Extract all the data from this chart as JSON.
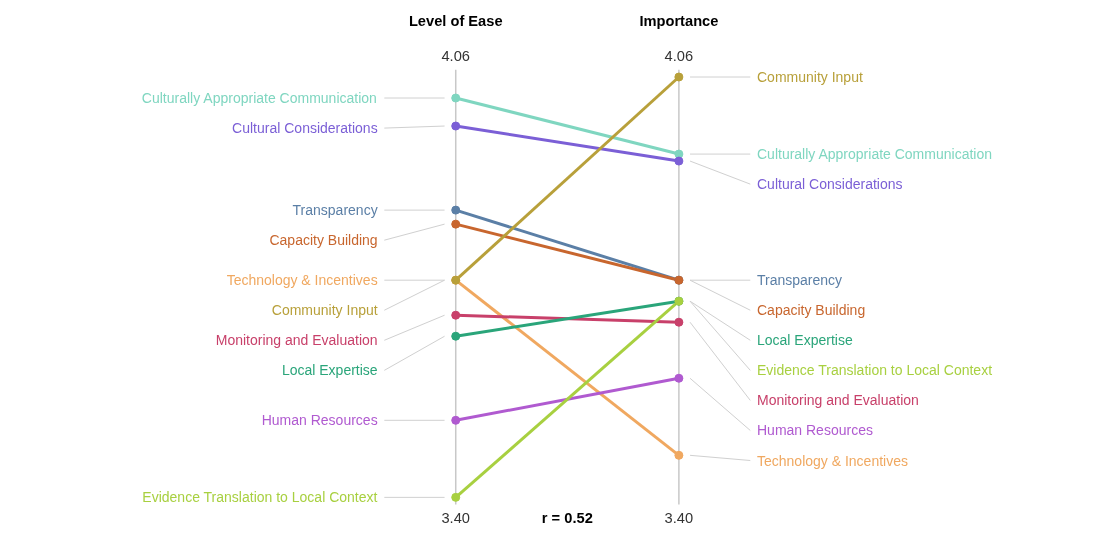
{
  "chart_data": {
    "type": "line",
    "categories": [
      "Level of Ease",
      "Importance"
    ],
    "ylim": [
      3.4,
      4.06
    ],
    "yticks": [
      {
        "value": 3.4,
        "label": "3.40"
      },
      {
        "value": 4.06,
        "label": "4.06"
      }
    ],
    "marker": "circle",
    "grid": "x",
    "legend": false,
    "annotations": [
      "r = 0.52"
    ],
    "series": [
      {
        "name": "Culturally Appropriate Communication",
        "color": "#7fd6c0",
        "values": [
          4.0,
          3.92
        ]
      },
      {
        "name": "Cultural Considerations",
        "color": "#7b5fd6",
        "values": [
          3.96,
          3.91
        ]
      },
      {
        "name": "Transparency",
        "color": "#5b7fa6",
        "values": [
          3.84,
          3.74
        ]
      },
      {
        "name": "Capacity Building",
        "color": "#c8662e",
        "values": [
          3.82,
          3.74
        ]
      },
      {
        "name": "Technology & Incentives",
        "color": "#f0a860",
        "values": [
          3.74,
          3.49
        ]
      },
      {
        "name": "Community Input",
        "color": "#b8a03a",
        "values": [
          3.74,
          4.03
        ]
      },
      {
        "name": "Monitoring and Evaluation",
        "color": "#c8406a",
        "values": [
          3.69,
          3.68
        ]
      },
      {
        "name": "Local Expertise",
        "color": "#2aa57a",
        "values": [
          3.66,
          3.71
        ]
      },
      {
        "name": "Human Resources",
        "color": "#b05ad0",
        "values": [
          3.54,
          3.6
        ]
      },
      {
        "name": "Evidence Translation to Local Context",
        "color": "#a8d040",
        "values": [
          3.43,
          3.71
        ]
      }
    ]
  }
}
